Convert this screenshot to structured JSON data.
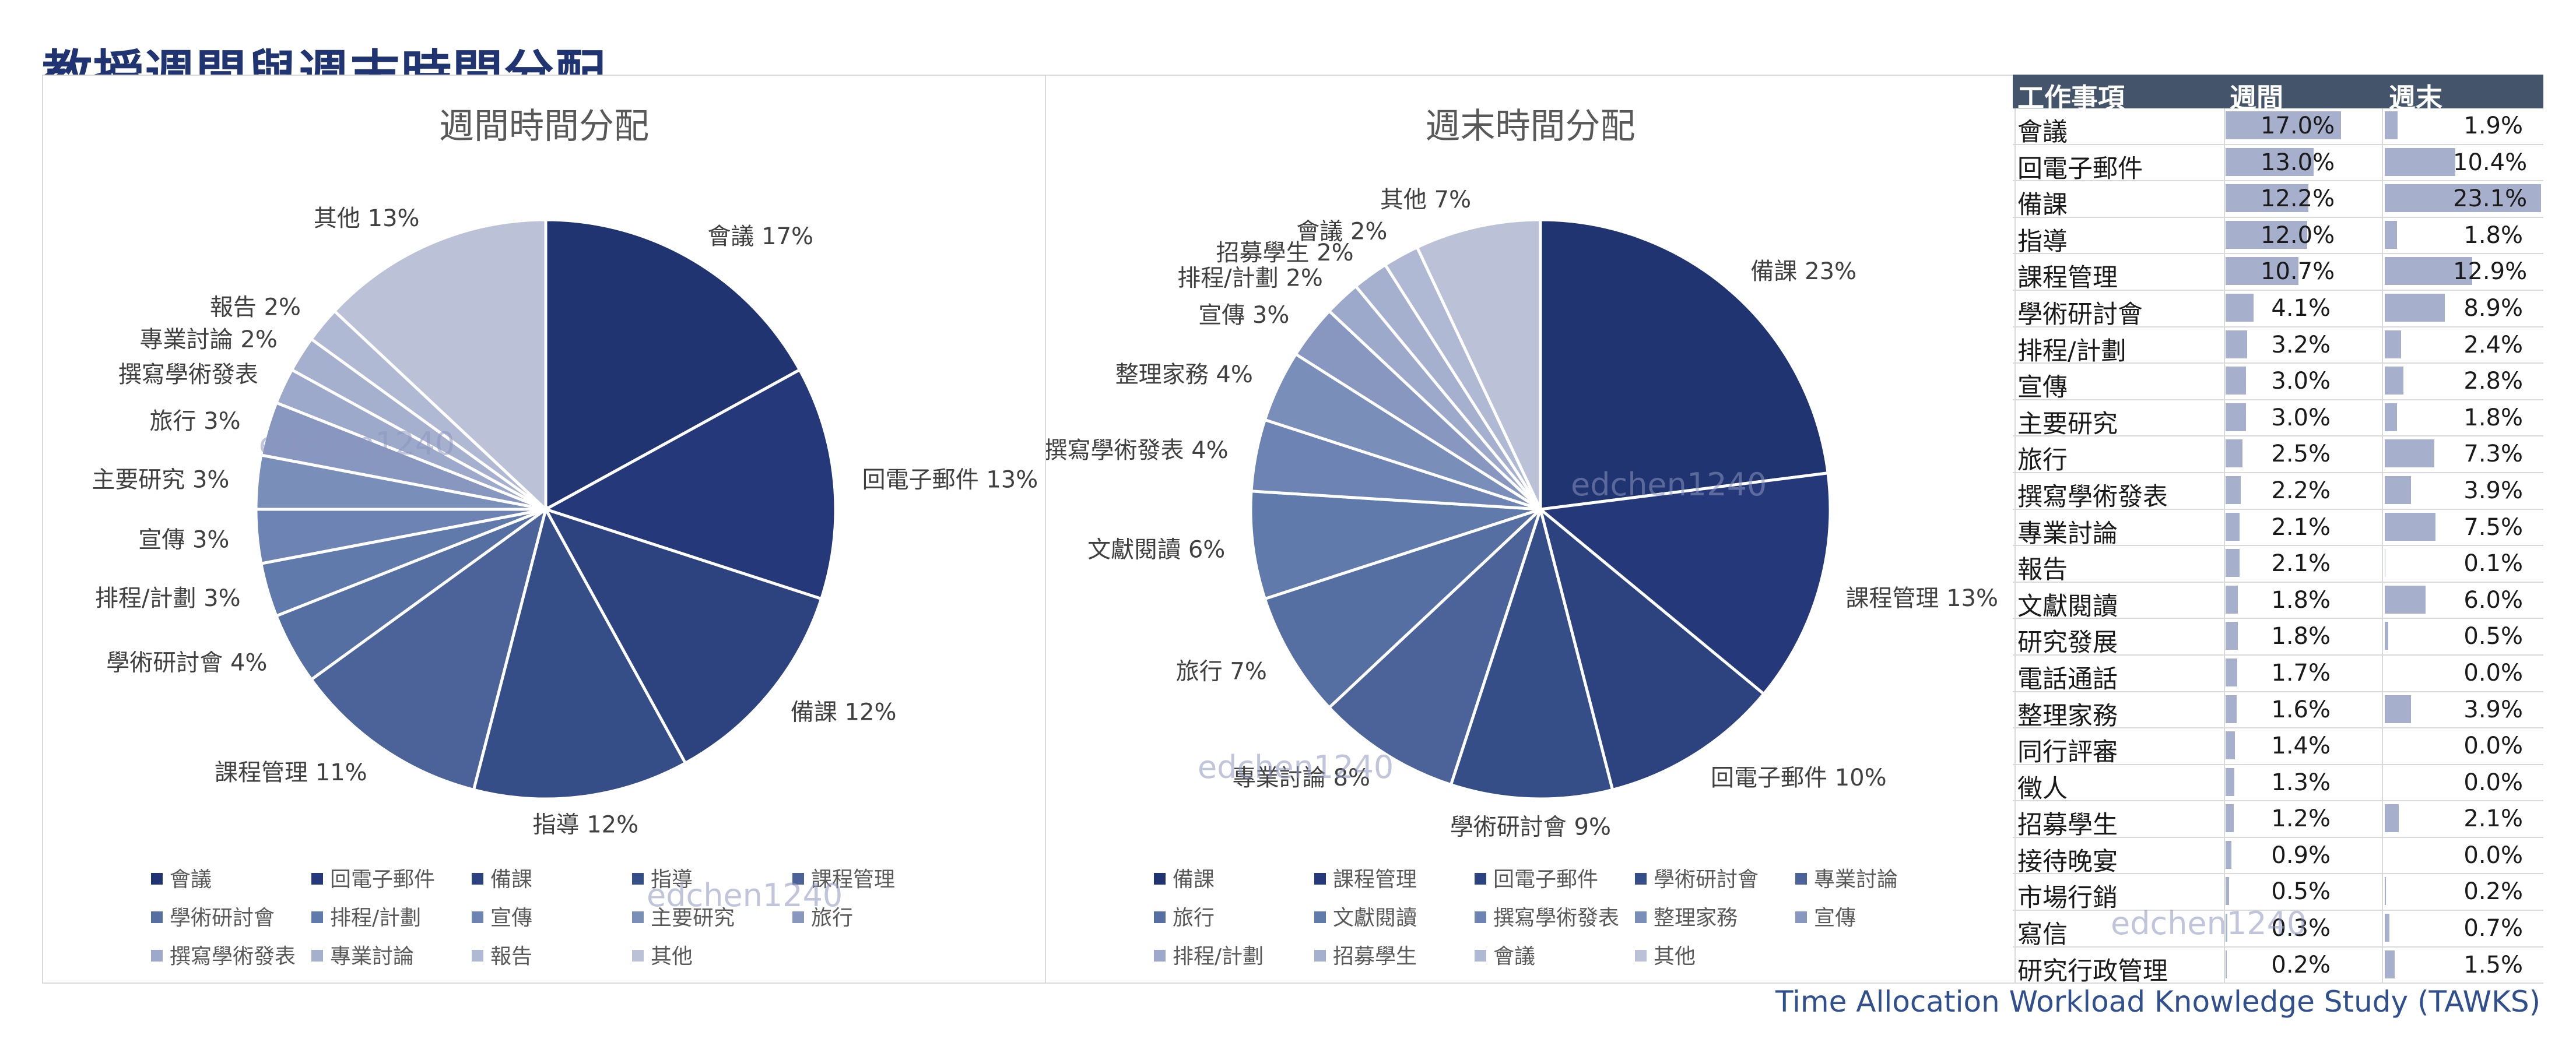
{
  "title": "教授週間與週末時間分配",
  "footer": "Time Allocation Workload Knowledge Study (TAWKS)",
  "watermark": "edchen1240",
  "colors": {
    "title": "#1f3470",
    "header_bg": "#44546a",
    "bar": "#a6afcc",
    "slice_palette": [
      "#1f3470",
      "#25397a",
      "#2d437f",
      "#364e88",
      "#3f5a92",
      "#4b6399",
      "#566fa3",
      "#617aac",
      "#6d83b3",
      "#7a8eba",
      "#8797c0",
      "#93a2c6",
      "#9ca9cb",
      "#a5b0cf",
      "#b0b9d4",
      "#bbc2d8"
    ]
  },
  "chart_data": [
    {
      "type": "pie",
      "title": "週間時間分配",
      "categories": [
        "會議",
        "回電子郵件",
        "備課",
        "指導",
        "課程管理",
        "學術研討會",
        "排程/計劃",
        "宣傳",
        "主要研究",
        "旅行",
        "撰寫學術發表",
        "專業討論",
        "報告",
        "其他"
      ],
      "values": [
        17,
        13,
        12,
        12,
        11,
        4,
        3,
        3,
        3,
        3,
        2,
        2,
        2,
        13
      ],
      "slice_labels": [
        "會議 17%",
        "回電子郵件 13%",
        "備課 12%",
        "指導 12%",
        "課程管理 11%",
        "學術研討會 4%",
        "排程/計劃 3%",
        "宣傳 3%",
        "主要研究 3%",
        "旅行 3%",
        "撰寫學術發表",
        "專業討論 2%",
        "報告 2%",
        "其他 13%"
      ],
      "legend": "bottom"
    },
    {
      "type": "pie",
      "title": "週末時間分配",
      "categories": [
        "備課",
        "課程管理",
        "回電子郵件",
        "學術研討會",
        "專業討論",
        "旅行",
        "文獻閱讀",
        "撰寫學術發表",
        "整理家務",
        "宣傳",
        "排程/計劃",
        "招募學生",
        "會議",
        "其他"
      ],
      "values": [
        23,
        13,
        10,
        9,
        8,
        7,
        6,
        4,
        4,
        3,
        2,
        2,
        2,
        7
      ],
      "slice_labels": [
        "備課 23%",
        "課程管理 13%",
        "回電子郵件 10%",
        "學術研討會 9%",
        "專業討論 8%",
        "旅行 7%",
        "文獻閱讀 6%",
        "撰寫學術發表 4%",
        "整理家務 4%",
        "宣傳 3%",
        "排程/計劃 2%",
        "招募學生 2%",
        "會議 2%",
        "其他 7%"
      ],
      "legend": "bottom"
    },
    {
      "type": "table",
      "columns": [
        "工作事項",
        "週間",
        "週末"
      ],
      "rows": [
        {
          "item": "會議",
          "weekday": 17.0,
          "weekend": 1.9
        },
        {
          "item": "回電子郵件",
          "weekday": 13.0,
          "weekend": 10.4
        },
        {
          "item": "備課",
          "weekday": 12.2,
          "weekend": 23.1
        },
        {
          "item": "指導",
          "weekday": 12.0,
          "weekend": 1.8
        },
        {
          "item": "課程管理",
          "weekday": 10.7,
          "weekend": 12.9
        },
        {
          "item": "學術研討會",
          "weekday": 4.1,
          "weekend": 8.9
        },
        {
          "item": "排程/計劃",
          "weekday": 3.2,
          "weekend": 2.4
        },
        {
          "item": "宣傳",
          "weekday": 3.0,
          "weekend": 2.8
        },
        {
          "item": "主要研究",
          "weekday": 3.0,
          "weekend": 1.8
        },
        {
          "item": "旅行",
          "weekday": 2.5,
          "weekend": 7.3
        },
        {
          "item": "撰寫學術發表",
          "weekday": 2.2,
          "weekend": 3.9
        },
        {
          "item": "專業討論",
          "weekday": 2.1,
          "weekend": 7.5
        },
        {
          "item": "報告",
          "weekday": 2.1,
          "weekend": 0.1
        },
        {
          "item": "文獻閱讀",
          "weekday": 1.8,
          "weekend": 6.0
        },
        {
          "item": "研究發展",
          "weekday": 1.8,
          "weekend": 0.5
        },
        {
          "item": "電話通話",
          "weekday": 1.7,
          "weekend": 0.0
        },
        {
          "item": "整理家務",
          "weekday": 1.6,
          "weekend": 3.9
        },
        {
          "item": "同行評審",
          "weekday": 1.4,
          "weekend": 0.0
        },
        {
          "item": "徵人",
          "weekday": 1.3,
          "weekend": 0.0
        },
        {
          "item": "招募學生",
          "weekday": 1.2,
          "weekend": 2.1
        },
        {
          "item": "接待晚宴",
          "weekday": 0.9,
          "weekend": 0.0
        },
        {
          "item": "市場行銷",
          "weekday": 0.5,
          "weekend": 0.2
        },
        {
          "item": "寫信",
          "weekday": 0.3,
          "weekend": 0.7
        },
        {
          "item": "研究行政管理",
          "weekday": 0.2,
          "weekend": 1.5
        }
      ]
    }
  ]
}
